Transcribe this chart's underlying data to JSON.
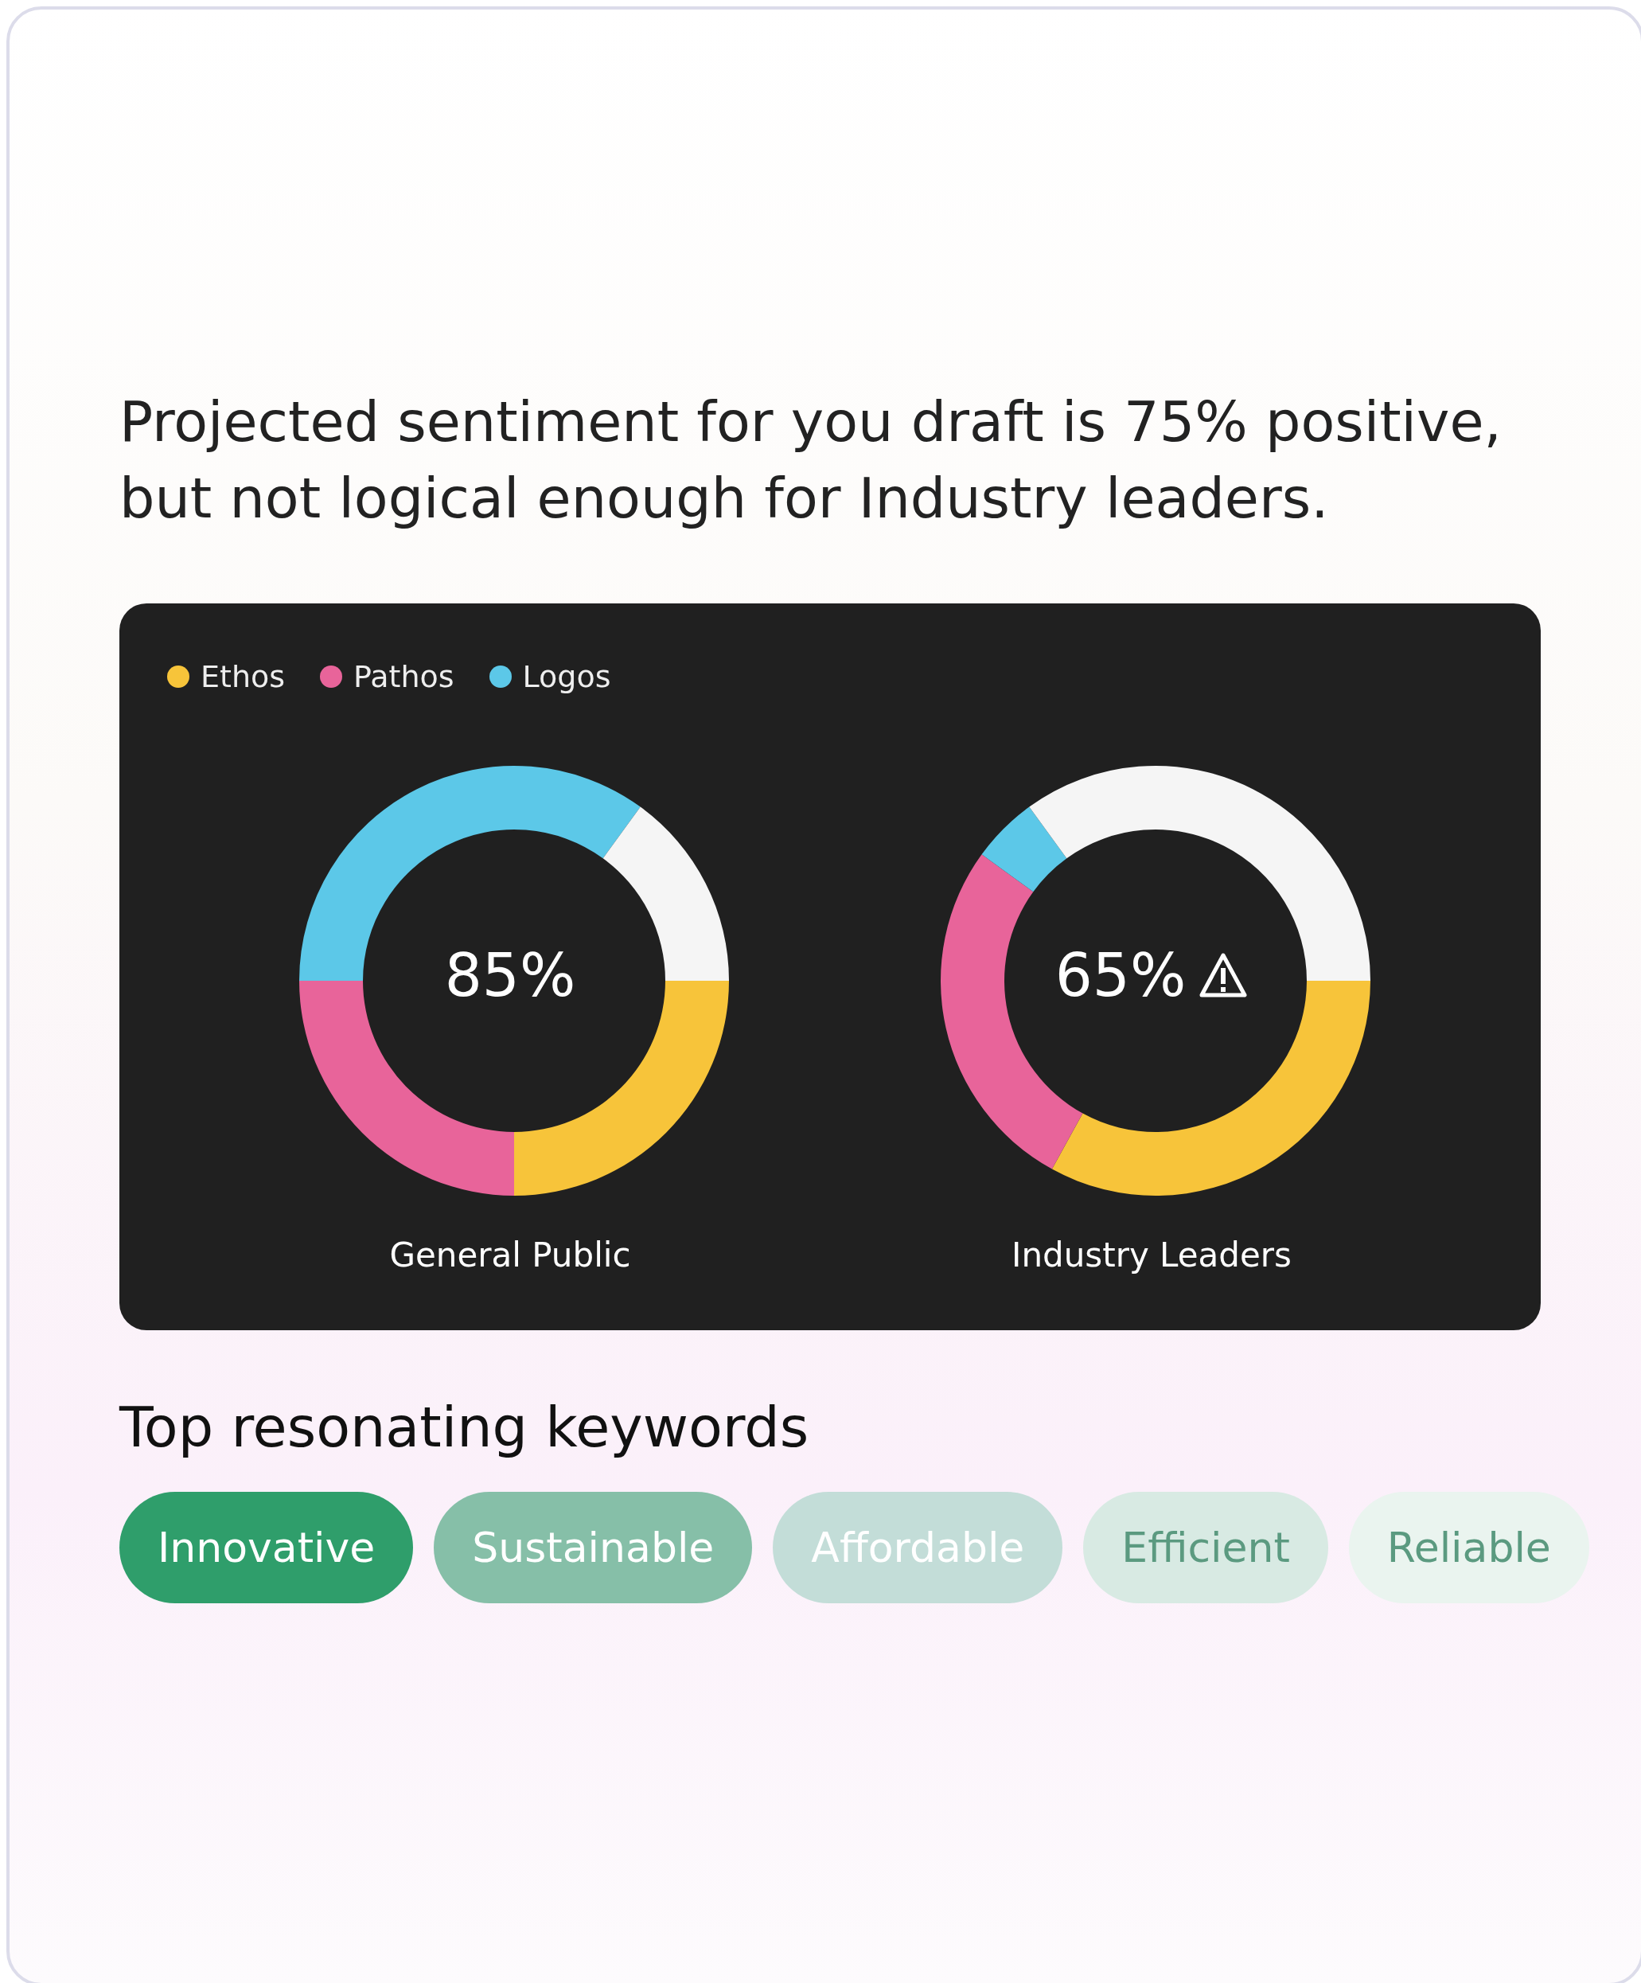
{
  "chart_data": [
    {
      "type": "other",
      "title": "Projected sentiment for you draft is 75% positive, but not logical enough for Industry leaders."
    },
    {
      "type": "donut",
      "title": "General Public",
      "annotations": [
        "85%"
      ],
      "categories": [
        "Ethos",
        "Pathos",
        "Logos",
        null
      ],
      "values": [
        25,
        25,
        35,
        15
      ],
      "colors": [
        "#f7c43a",
        "#e8649a",
        "#5cc8e8",
        "#f5f5f5"
      ],
      "legend": "top left"
    },
    {
      "type": "donut",
      "title": "Industry Leaders",
      "annotations": [
        "65%"
      ],
      "categories": [
        null,
        null,
        null,
        null
      ],
      "values": [
        33,
        27,
        5,
        35
      ],
      "colors": [
        "#f7c43a",
        "#e8649a",
        "#5cc8e8",
        "#f5f5f5"
      ]
    },
    {
      "type": "other",
      "title": "Top resonating keywords",
      "annotations": [
        "Innovative",
        "Sustainable",
        "Affordable",
        "Efficient",
        "Reliable"
      ],
      "colors": [
        "#2f9e6b",
        "#86bfa8",
        "#c3ddd8",
        "#d8eae3",
        "#eaf4ef"
      ]
    }
  ]
}
